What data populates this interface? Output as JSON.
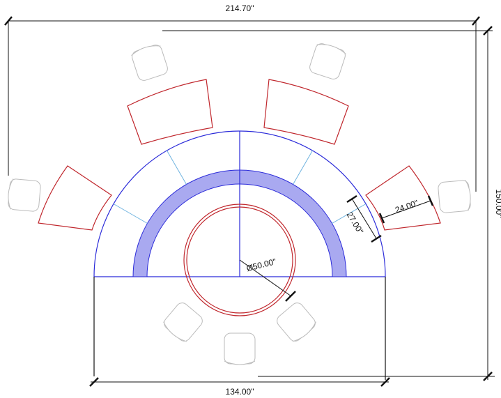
{
  "dimensions": {
    "overall_width": "214.70\"",
    "overall_depth": "150.00\"",
    "base_width": "134.00\"",
    "table_diameter": "Ø50.00\"",
    "seat_depth": "27.00\"",
    "seat_width": "24.00\""
  }
}
